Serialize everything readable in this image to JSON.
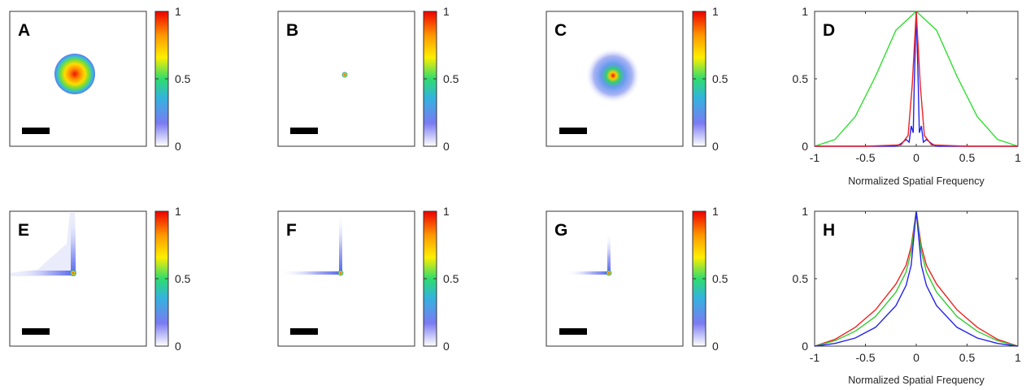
{
  "chart_data": [
    {
      "panel": "A",
      "type": "heatmap",
      "pattern": "disk",
      "colorbar": {
        "ticks": [
          "0",
          "0.5",
          "1"
        ],
        "range": [
          0,
          1
        ]
      }
    },
    {
      "panel": "B",
      "type": "heatmap",
      "pattern": "point",
      "colorbar": {
        "ticks": [
          "0",
          "0.5",
          "1"
        ],
        "range": [
          0,
          1
        ]
      }
    },
    {
      "panel": "C",
      "type": "heatmap",
      "pattern": "speckle",
      "colorbar": {
        "ticks": [
          "0",
          "0.5",
          "1"
        ],
        "range": [
          0,
          1
        ]
      }
    },
    {
      "panel": "D",
      "type": "line",
      "xlabel": "Normalized Spatial Frequency",
      "xlim": [
        -1,
        1
      ],
      "ylim": [
        0,
        1
      ],
      "xticks": [
        "-1",
        "-0.5",
        "0",
        "0.5",
        "1"
      ],
      "yticks": [
        "0",
        "0.5",
        "1"
      ],
      "series": [
        {
          "color": "#33dd33",
          "x": [
            -1,
            -0.8,
            -0.6,
            -0.4,
            -0.2,
            0,
            0.2,
            0.4,
            0.6,
            0.8,
            1
          ],
          "y": [
            0.0,
            0.05,
            0.22,
            0.52,
            0.86,
            1.0,
            0.86,
            0.52,
            0.22,
            0.05,
            0.0
          ]
        },
        {
          "color": "#2222ee",
          "x": [
            -1,
            -0.5,
            -0.2,
            -0.15,
            -0.1,
            -0.07,
            -0.05,
            -0.03,
            -0.02,
            0,
            0.02,
            0.03,
            0.05,
            0.07,
            0.1,
            0.15,
            0.2,
            0.5,
            1
          ],
          "y": [
            0,
            0,
            0,
            0.02,
            0.05,
            0.03,
            0.15,
            0.1,
            0.45,
            1.0,
            0.45,
            0.1,
            0.15,
            0.03,
            0.05,
            0.02,
            0,
            0,
            0
          ]
        },
        {
          "color": "#ee2222",
          "x": [
            -1,
            -0.5,
            -0.15,
            -0.08,
            -0.04,
            0,
            0.04,
            0.08,
            0.15,
            0.5,
            1
          ],
          "y": [
            0,
            0,
            0.01,
            0.08,
            0.45,
            1.0,
            0.45,
            0.08,
            0.01,
            0,
            0
          ]
        }
      ]
    },
    {
      "panel": "E",
      "type": "heatmap",
      "pattern": "cross-wide",
      "colorbar": {
        "ticks": [
          "0",
          "0.5",
          "1"
        ],
        "range": [
          0,
          1
        ]
      }
    },
    {
      "panel": "F",
      "type": "heatmap",
      "pattern": "cross",
      "colorbar": {
        "ticks": [
          "0",
          "0.5",
          "1"
        ],
        "range": [
          0,
          1
        ]
      }
    },
    {
      "panel": "G",
      "type": "heatmap",
      "pattern": "cross-narrow",
      "colorbar": {
        "ticks": [
          "0",
          "0.5",
          "1"
        ],
        "range": [
          0,
          1
        ]
      }
    },
    {
      "panel": "H",
      "type": "line",
      "xlabel": "Normalized Spatial Frequency",
      "xlim": [
        -1,
        1
      ],
      "ylim": [
        0,
        1
      ],
      "xticks": [
        "-1",
        "-0.5",
        "0",
        "0.5",
        "1"
      ],
      "yticks": [
        "0",
        "0.5",
        "1"
      ],
      "series": [
        {
          "color": "#ee2222",
          "x": [
            -1,
            -0.8,
            -0.6,
            -0.4,
            -0.2,
            -0.1,
            -0.05,
            0,
            0.05,
            0.1,
            0.2,
            0.4,
            0.6,
            0.8,
            1
          ],
          "y": [
            0.0,
            0.05,
            0.14,
            0.27,
            0.46,
            0.6,
            0.74,
            1.0,
            0.74,
            0.6,
            0.46,
            0.27,
            0.14,
            0.05,
            0.0
          ]
        },
        {
          "color": "#33cc33",
          "x": [
            -1,
            -0.8,
            -0.6,
            -0.4,
            -0.2,
            -0.1,
            -0.05,
            0,
            0.05,
            0.1,
            0.2,
            0.4,
            0.6,
            0.8,
            1
          ],
          "y": [
            0.0,
            0.04,
            0.11,
            0.22,
            0.4,
            0.55,
            0.7,
            1.0,
            0.7,
            0.55,
            0.4,
            0.22,
            0.11,
            0.04,
            0.0
          ]
        },
        {
          "color": "#2222ee",
          "x": [
            -1,
            -0.8,
            -0.6,
            -0.4,
            -0.2,
            -0.1,
            -0.05,
            0,
            0.05,
            0.1,
            0.2,
            0.4,
            0.6,
            0.8,
            1
          ],
          "y": [
            0.0,
            0.02,
            0.06,
            0.14,
            0.3,
            0.45,
            0.6,
            1.0,
            0.6,
            0.45,
            0.3,
            0.14,
            0.06,
            0.02,
            0.0
          ]
        }
      ]
    }
  ]
}
